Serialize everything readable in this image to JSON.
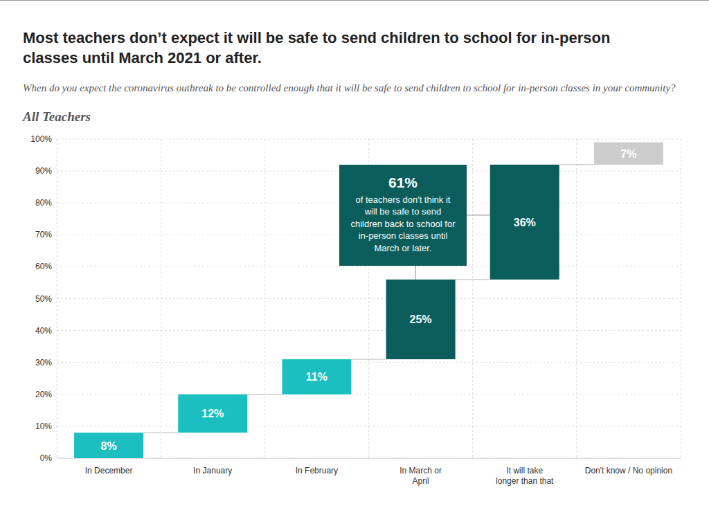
{
  "chart_data": {
    "type": "waterfall",
    "title": "Most teachers don’t expect it will be safe to send children to school for in-person classes until March 2021 or after.",
    "subtitle": "When do you expect the coronavirus outbreak to be controlled enough that it will be safe to send children to school for in-person classes in your community?",
    "panel_title": "All Teachers",
    "categories": [
      "In December",
      "In January",
      "In February",
      "In March or\nApril",
      "It will take\nlonger than that",
      "Don't know / No opinion"
    ],
    "values": [
      8,
      12,
      11,
      25,
      36,
      7
    ],
    "value_labels": [
      "8%",
      "12%",
      "11%",
      "25%",
      "36%",
      "7%"
    ],
    "colors": [
      "#1bbfc0",
      "#1bbfc0",
      "#1bbfc0",
      "#0b5d5b",
      "#0b5d5b",
      "#cccccc"
    ],
    "ylim": [
      0,
      100
    ],
    "yticks": [
      {
        "value": 0,
        "label": "0%"
      },
      {
        "value": 10,
        "label": "10%"
      },
      {
        "value": 20,
        "label": "20%"
      },
      {
        "value": 30,
        "label": "30%"
      },
      {
        "value": 40,
        "label": "40%"
      },
      {
        "value": 50,
        "label": "50%"
      },
      {
        "value": 60,
        "label": "60%"
      },
      {
        "value": 70,
        "label": "70%"
      },
      {
        "value": 80,
        "label": "80%"
      },
      {
        "value": 90,
        "label": "90%"
      },
      {
        "value": 100,
        "label": "100%"
      }
    ],
    "grid": true,
    "data_labels": true,
    "annotation": {
      "label": "61%",
      "text": "of teachers don't think it will be safe to send children back to school for in-person classes until March or later."
    }
  }
}
